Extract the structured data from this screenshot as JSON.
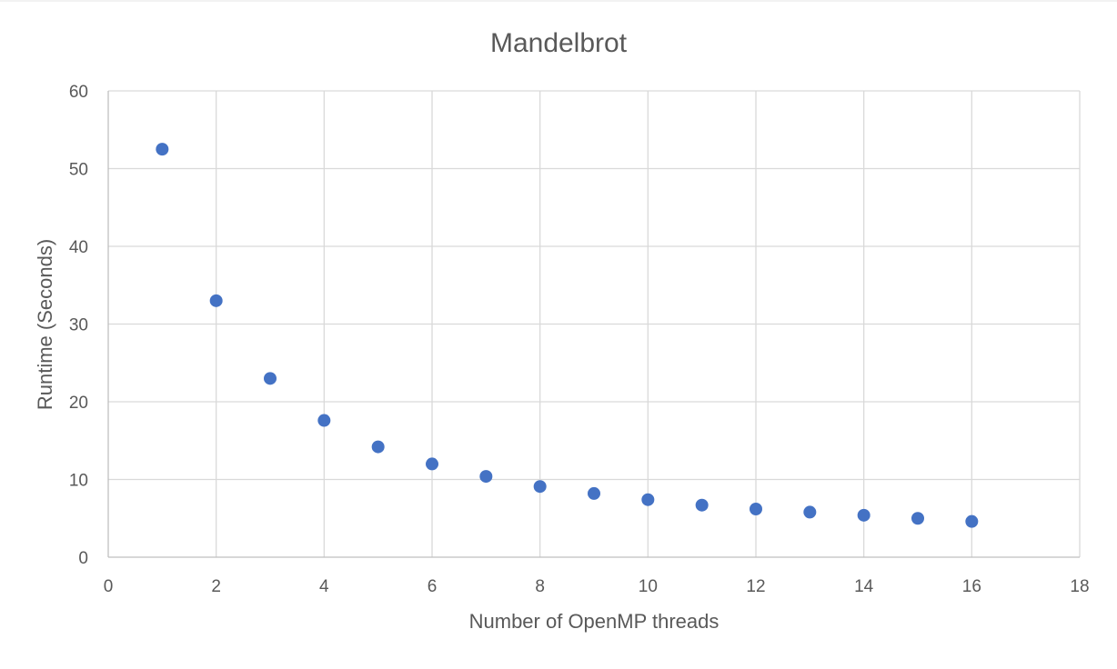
{
  "chart_data": {
    "type": "scatter",
    "title": "Mandelbrot",
    "xlabel": "Number of OpenMP threads",
    "ylabel": "Runtime (Seconds)",
    "xlim": [
      0,
      18
    ],
    "ylim": [
      0,
      60
    ],
    "x_ticks": [
      0,
      2,
      4,
      6,
      8,
      10,
      12,
      14,
      16,
      18
    ],
    "y_ticks": [
      0,
      10,
      20,
      30,
      40,
      50,
      60
    ],
    "grid": true,
    "legend": "none",
    "marker_color": "#4472c4",
    "series": [
      {
        "x": [
          1,
          2,
          3,
          4,
          5,
          6,
          7,
          8,
          9,
          10,
          11,
          12,
          13,
          14,
          15,
          16
        ],
        "y": [
          52.5,
          33.0,
          23.0,
          17.6,
          14.2,
          12.0,
          10.4,
          9.1,
          8.2,
          7.4,
          6.7,
          6.2,
          5.8,
          5.4,
          5.0,
          4.6
        ]
      }
    ]
  }
}
